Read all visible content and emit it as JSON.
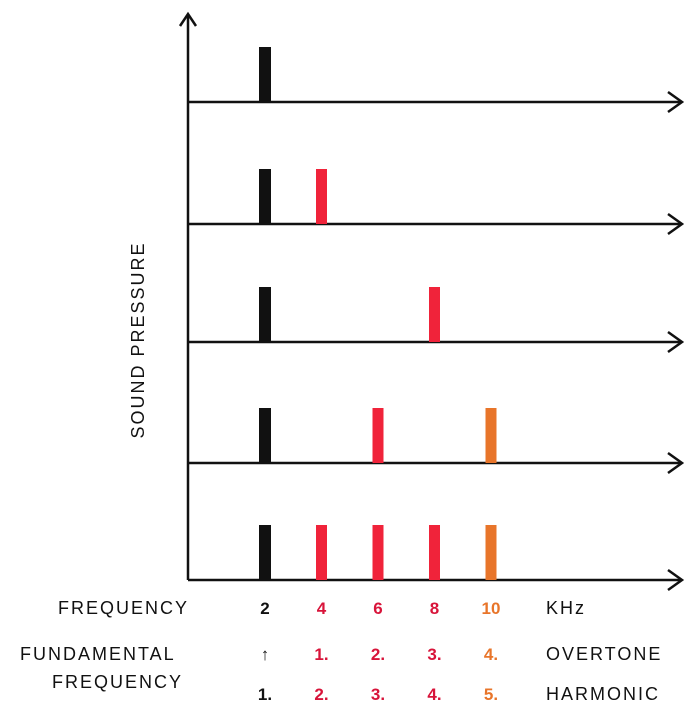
{
  "chart_data": {
    "type": "bar",
    "ylabel": "SOUND PRESSURE",
    "x_axis": {
      "row_label": "FREQUENCY",
      "ticks": [
        "2",
        "4",
        "6",
        "8",
        "10"
      ],
      "unit": "KHz",
      "values_khz": [
        2,
        4,
        6,
        8,
        10
      ]
    },
    "panels": [
      {
        "bars_khz": [
          2
        ]
      },
      {
        "bars_khz": [
          2,
          4
        ]
      },
      {
        "bars_khz": [
          2,
          8
        ]
      },
      {
        "bars_khz": [
          2,
          6,
          10
        ]
      },
      {
        "bars_khz": [
          2,
          4,
          6,
          8,
          10
        ]
      }
    ],
    "fundamental_label": "FUNDAMENTAL\nFREQUENCY",
    "fundamental_marker": "↑",
    "overtone_row": {
      "labels": [
        "1.",
        "2.",
        "3.",
        "4."
      ],
      "name": "OVERTONE"
    },
    "harmonic_row": {
      "labels": [
        "1.",
        "2.",
        "3.",
        "4.",
        "5."
      ],
      "name": "HARMONIC"
    }
  },
  "colors": {
    "axis": "#111111",
    "fundamental": "#111111",
    "overtone_1_to_3": "#f0233a",
    "overtone_4": "#e8752a",
    "label_dark": "#111111",
    "label_red": "#d8143a",
    "label_orange": "#e8752a"
  }
}
